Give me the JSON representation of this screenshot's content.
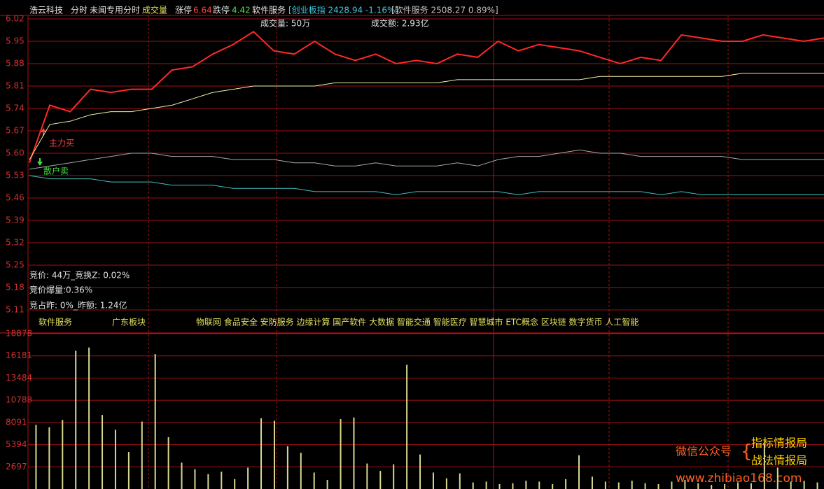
{
  "header": {
    "name": "浩云科技",
    "mode": "分时",
    "indicator": "未闻专用分时",
    "volume_label": "成交量",
    "limit_up_label": "涨停",
    "limit_up": 6.64,
    "limit_down_label": "跌停",
    "limit_down": 4.42,
    "sector": "软件服务",
    "index1": "[创业板指 2428.94 -1.16%]",
    "index2": "[软件服务 2508.27 0.89%]"
  },
  "stats": {
    "volume": "成交量: 50万",
    "amount": "成交额: 2.93亿"
  },
  "annotations": {
    "buy": "主力买",
    "sell": "散户卖"
  },
  "auction": [
    "竞价: 44万_竞换Z: 0.02%",
    "竞价爆量:0.36%",
    "竞占昨: 0%_昨额: 1.24亿"
  ],
  "concepts": {
    "sector": "软件服务",
    "region": "广东板块",
    "themes": "物联网 食品安全 安防服务 边缘计算 国产软件 大数据 智能交通 智能医疗 智慧城市 ETC概念 区块链 数字货币 人工智能"
  },
  "watermark": {
    "account": "微信公众号",
    "name1": "指标情报局",
    "name2": "战法情报局",
    "url": "www.zhibiao168.com"
  },
  "chart_data": [
    {
      "type": "line",
      "ylim": [
        5.11,
        6.02
      ],
      "yticks": [
        6.02,
        5.95,
        5.88,
        5.81,
        5.74,
        5.67,
        {
          "value": 5.6,
          "label": "5.60"
        },
        5.53,
        5.46,
        5.39,
        5.32,
        5.25,
        5.18,
        5.11
      ],
      "grid": true,
      "series": [
        {
          "name": "价格",
          "color": "#ff2828",
          "values": [
            5.57,
            5.75,
            5.73,
            5.8,
            5.79,
            5.8,
            5.8,
            5.86,
            5.87,
            5.91,
            5.94,
            5.98,
            5.92,
            5.91,
            5.95,
            5.91,
            5.89,
            5.91,
            5.88,
            5.89,
            5.88,
            5.91,
            5.9,
            5.95,
            5.92,
            5.94,
            5.93,
            5.92,
            5.9,
            5.88,
            5.9,
            5.89,
            5.97,
            5.96,
            5.95,
            5.95,
            5.97,
            5.96,
            5.95,
            5.96
          ]
        },
        {
          "name": "均价",
          "color": "#f0f0a8",
          "values": [
            5.58,
            5.69,
            5.7,
            5.72,
            5.73,
            5.73,
            5.74,
            5.75,
            5.77,
            5.79,
            5.8,
            5.81,
            5.81,
            5.81,
            5.81,
            5.82,
            5.82,
            5.82,
            5.82,
            5.82,
            5.82,
            5.83,
            5.83,
            5.83,
            5.83,
            5.83,
            5.83,
            5.83,
            5.84,
            5.84,
            5.84,
            5.84,
            5.84,
            5.84,
            5.84,
            5.85,
            5.85,
            5.85,
            5.85,
            5.85
          ]
        },
        {
          "name": "线1",
          "color": "#a8a8a8",
          "values": [
            5.55,
            5.56,
            5.57,
            5.58,
            5.59,
            5.6,
            5.6,
            5.59,
            5.59,
            5.59,
            5.58,
            5.58,
            5.58,
            5.57,
            5.57,
            5.56,
            5.56,
            5.57,
            5.56,
            5.56,
            5.56,
            5.57,
            5.56,
            5.58,
            5.59,
            5.59,
            5.6,
            5.61,
            5.6,
            5.6,
            5.59,
            5.59,
            5.59,
            5.59,
            5.59,
            5.58,
            5.58,
            5.58,
            5.58,
            5.58
          ]
        },
        {
          "name": "线2",
          "color": "#40c0c0",
          "values": [
            5.53,
            5.52,
            5.52,
            5.52,
            5.51,
            5.51,
            5.51,
            5.5,
            5.5,
            5.5,
            5.49,
            5.49,
            5.49,
            5.49,
            5.48,
            5.48,
            5.48,
            5.48,
            5.47,
            5.48,
            5.48,
            5.48,
            5.48,
            5.48,
            5.47,
            5.48,
            5.48,
            5.48,
            5.48,
            5.48,
            5.48,
            5.47,
            5.48,
            5.47,
            5.47,
            5.47,
            5.47,
            5.47,
            5.47,
            5.47
          ]
        }
      ]
    },
    {
      "type": "bar",
      "ylim": [
        0,
        18878
      ],
      "yticks": [
        18878,
        16181,
        13484,
        10788,
        8091,
        5394,
        2697
      ],
      "grid": true,
      "color": "#d8d890",
      "values": [
        7800,
        7500,
        8400,
        16800,
        17200,
        9000,
        7200,
        4500,
        8200,
        16400,
        6300,
        3200,
        2400,
        1800,
        2100,
        1200,
        2600,
        8600,
        8300,
        5200,
        4400,
        2000,
        1100,
        8500,
        8700,
        3100,
        2200,
        3000,
        15100,
        4200,
        2000,
        1300,
        1900,
        800,
        900,
        600,
        700,
        1000,
        900,
        600,
        1200,
        4100,
        1500,
        900,
        800,
        1000,
        700,
        600,
        900,
        1100,
        700,
        500,
        600,
        800,
        700,
        5500,
        2600,
        900,
        1000,
        800
      ]
    }
  ]
}
